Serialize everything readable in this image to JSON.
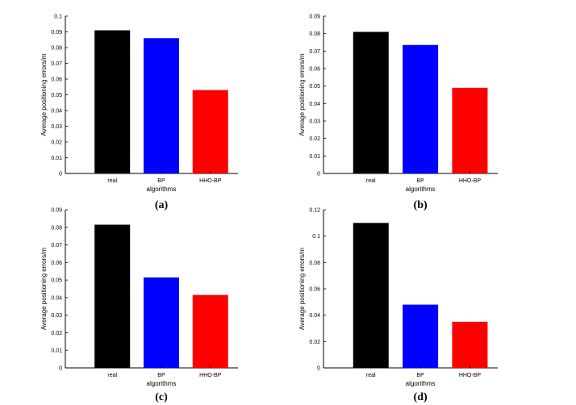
{
  "charts": [
    {
      "caption": "(a)",
      "chart_data": {
        "type": "bar",
        "categories": [
          "real",
          "BP",
          "HHO-BP"
        ],
        "values": [
          0.091,
          0.086,
          0.053
        ],
        "colors": [
          "#000000",
          "#0000ff",
          "#ff0000"
        ],
        "xlabel": "algorithms",
        "ylabel": "Average positioning errors/m",
        "ylim": [
          0,
          0.1
        ],
        "yticks": [
          "0",
          "0.01",
          "0.02",
          "0.03",
          "0.04",
          "0.05",
          "0.06",
          "0.07",
          "0.08",
          "0.09",
          "0.1"
        ],
        "grid": false
      }
    },
    {
      "caption": "(b)",
      "chart_data": {
        "type": "bar",
        "categories": [
          "real",
          "BP",
          "HHO-BP"
        ],
        "values": [
          0.081,
          0.0735,
          0.049
        ],
        "colors": [
          "#000000",
          "#0000ff",
          "#ff0000"
        ],
        "xlabel": "algorithms",
        "ylabel": "Average positioning errors/m",
        "ylim": [
          0,
          0.09
        ],
        "yticks": [
          "0",
          "0.01",
          "0.02",
          "0.03",
          "0.04",
          "0.05",
          "0.06",
          "0.07",
          "0.08",
          "0.09"
        ],
        "grid": false
      }
    },
    {
      "caption": "(c)",
      "chart_data": {
        "type": "bar",
        "categories": [
          "real",
          "BP",
          "HHO-BP"
        ],
        "values": [
          0.0815,
          0.0515,
          0.0415
        ],
        "colors": [
          "#000000",
          "#0000ff",
          "#ff0000"
        ],
        "xlabel": "algorithms",
        "ylabel": "Average positioning errors/m",
        "ylim": [
          0,
          0.09
        ],
        "yticks": [
          "0",
          "0.01",
          "0.02",
          "0.03",
          "0.04",
          "0.05",
          "0.06",
          "0.07",
          "0.08",
          "0.09"
        ],
        "grid": false
      }
    },
    {
      "caption": "(d)",
      "chart_data": {
        "type": "bar",
        "categories": [
          "real",
          "BP",
          "HHO-BP"
        ],
        "values": [
          0.11,
          0.048,
          0.035
        ],
        "colors": [
          "#000000",
          "#0000ff",
          "#ff0000"
        ],
        "xlabel": "algorithms",
        "ylabel": "Average positioning errors/m",
        "ylim": [
          0,
          0.12
        ],
        "yticks": [
          "0",
          "0.02",
          "0.04",
          "0.06",
          "0.08",
          "0.1",
          "0.12"
        ],
        "grid": false
      }
    }
  ]
}
